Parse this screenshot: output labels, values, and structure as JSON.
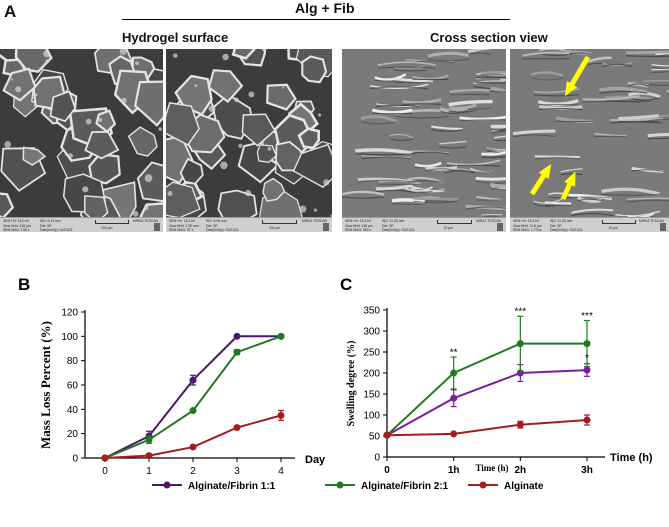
{
  "panel_a": {
    "letter": "A",
    "group_title": "Alg + Fib",
    "left_title": "Hydrogel surface",
    "right_title": "Cross section view",
    "images": [
      {
        "tone": "surface-cells",
        "info": {
          "hv": "SEM HV: 15.0 kV",
          "wd": "WD: 6.13 mm",
          "vf": "View field: 415 µm",
          "det": "Det: SE",
          "mag": "SEM MAG: 138 x",
          "date": "Date(m/d/y): 01/21/21",
          "scale": "200 µm",
          "logo": "MIRA3 TESCAN"
        }
      },
      {
        "tone": "surface-cells",
        "info": {
          "hv": "SEM HV: 15.0 kV",
          "wd": "WD: 6.08 mm",
          "vf": "View field: 1.39 mm",
          "det": "Det: SE",
          "mag": "SEM MAG: 97 x",
          "date": "Date(m/d/y): 01/21/21",
          "scale": "200 µm",
          "logo": "MIRA3 TESCAN"
        }
      },
      {
        "tone": "cross-section",
        "info": {
          "hv": "SEM HV: 15.0 kV",
          "wd": "WD: 11.33 mm",
          "vf": "View field: 138 µm",
          "det": "Det: SE",
          "mag": "SEM MAG: 983 x",
          "date": "Date(m/d/y): 01/21/21",
          "scale": "20 µm",
          "logo": "MIRA3 TESCAN"
        }
      },
      {
        "tone": "cross-section-zoom",
        "info": {
          "hv": "SEM HV: 15.0 kV",
          "wd": "WD: 11.33 mm",
          "vf": "View field: 74.6 µm",
          "det": "Det: SE",
          "mag": "SEM MAG: 1.79 kx",
          "date": "Date(m/d/y): 01/21/21",
          "scale": "20 µm",
          "logo": "MIRA3 TESCAN"
        }
      }
    ],
    "arrow_color": "#ffff00"
  },
  "chart_data": [
    {
      "panel": "B",
      "type": "line",
      "xlabel": "Day",
      "ylabel": "Mass Loss Percent (%)",
      "x": [
        0,
        1,
        2,
        3,
        4
      ],
      "xticks": [
        "0",
        "1",
        "2",
        "3",
        "4"
      ],
      "ylim": [
        0,
        120
      ],
      "yticks": [
        0,
        20,
        40,
        60,
        80,
        100,
        120
      ],
      "grid": false,
      "series": [
        {
          "name": "Alginate/Fibrin 1:1",
          "color": "#4b1766",
          "values": [
            0,
            18,
            64,
            100,
            100
          ],
          "errors": [
            0,
            4,
            4,
            0,
            0
          ]
        },
        {
          "name": "Alginate/Fibrin 2:1",
          "color": "#207a20",
          "values": [
            0,
            15,
            39,
            87,
            100
          ],
          "errors": [
            0,
            3,
            0,
            2,
            0
          ]
        },
        {
          "name": "Alginate",
          "color": "#a41c1c",
          "values": [
            0,
            2,
            9,
            25,
            35
          ],
          "errors": [
            0,
            0,
            0,
            0,
            4
          ]
        }
      ]
    },
    {
      "panel": "C",
      "type": "line",
      "xlabel": "Time (h)",
      "xlabel_bottom": "Time (h)",
      "ylabel": "Swelling degree (%)",
      "x": [
        0,
        1,
        2,
        3
      ],
      "xticks": [
        "0",
        "1h",
        "2h",
        "3h"
      ],
      "ylim": [
        0,
        350
      ],
      "yticks": [
        0,
        50,
        100,
        150,
        200,
        250,
        300,
        350
      ],
      "grid": false,
      "series": [
        {
          "name": "Alginate/Fibrin 1:1",
          "color": "#7b1e9e",
          "values": [
            52,
            140,
            200,
            207
          ],
          "errors": [
            0,
            20,
            20,
            15
          ]
        },
        {
          "name": "Alginate/Fibrin 2:1",
          "color": "#207a20",
          "values": [
            52,
            200,
            270,
            270
          ],
          "errors": [
            0,
            38,
            65,
            55
          ]
        },
        {
          "name": "Alginate",
          "color": "#a41c1c",
          "values": [
            52,
            55,
            77,
            88
          ],
          "errors": [
            0,
            0,
            8,
            12
          ]
        }
      ],
      "annotations": [
        {
          "x": 1,
          "y": 242,
          "text": "**"
        },
        {
          "x": 2,
          "y": 339,
          "text": "***"
        },
        {
          "x": 3,
          "y": 329,
          "text": "***"
        },
        {
          "x": 3,
          "y": 229,
          "text": "*"
        }
      ]
    }
  ],
  "legend": {
    "items": [
      {
        "label": "Alginate/Fibrin 1:1",
        "color": "#4b1766"
      },
      {
        "label": "Alginate/Fibrin 2:1",
        "color": "#207a20"
      },
      {
        "label": "Alginate",
        "color": "#a41c1c"
      }
    ]
  }
}
